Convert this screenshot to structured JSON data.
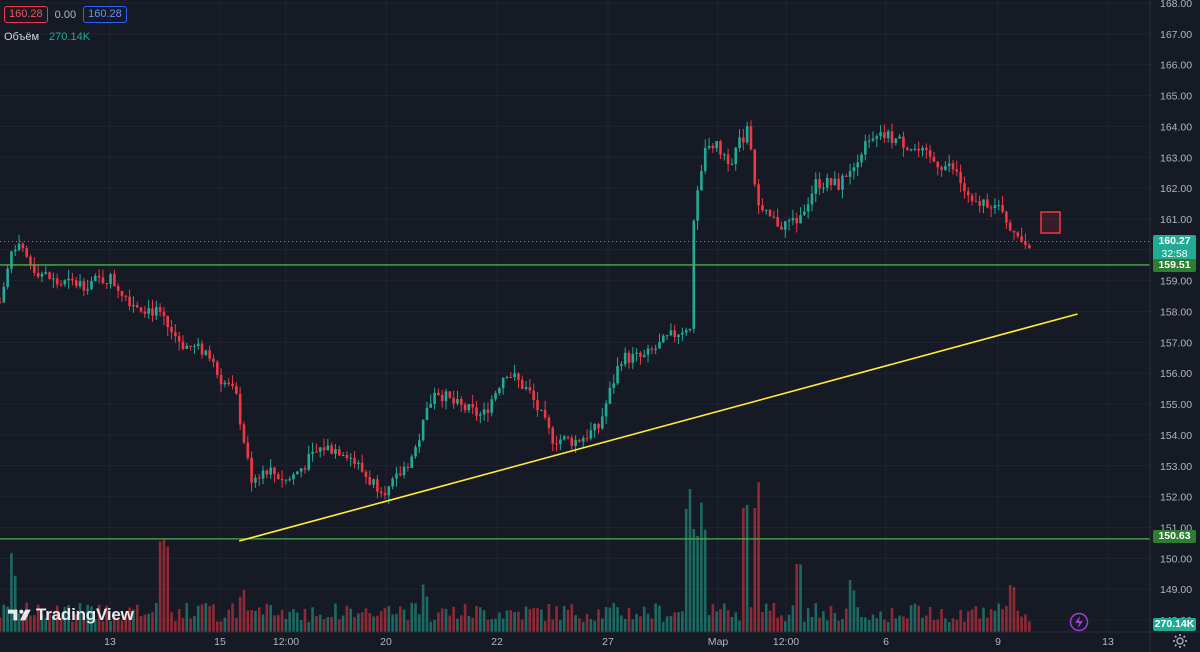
{
  "legend": {
    "open": "160.28",
    "change": "0.00",
    "close": "160.28",
    "volume_label": "Объём",
    "volume_value": "270.14K"
  },
  "branding": {
    "logo_text": "TradingView"
  },
  "colors": {
    "background": "#161a25",
    "up": "#22ab94",
    "down": "#f23645",
    "grid": "#1f2431",
    "horizontal_line": "#4caf50",
    "trendline": "#ffeb3b",
    "volume_up": "#22ab94",
    "volume_down": "#f23645",
    "last_price": "#22ab94"
  },
  "price_tags": {
    "last_price": "160.27",
    "countdown": "32:58",
    "level_upper": "159.51",
    "level_lower": "150.63",
    "volume": "270.14K"
  },
  "icons": {
    "settings": "gear-icon",
    "replay": "lightning-icon"
  },
  "chart_data": {
    "type": "candlestick",
    "price_axis": {
      "min": 148.0,
      "max": 168.0,
      "ticks": [
        "168.00",
        "167.00",
        "166.00",
        "165.00",
        "164.00",
        "163.00",
        "162.00",
        "161.00",
        "160.00",
        "159.00",
        "158.00",
        "157.00",
        "156.00",
        "155.00",
        "154.00",
        "153.00",
        "152.00",
        "151.00",
        "150.00",
        "149.00",
        "148.00"
      ]
    },
    "time_axis": {
      "labels": [
        "13",
        "15",
        "12:00",
        "20",
        "22",
        "27",
        "Мар",
        "12:00",
        "6",
        "9",
        "13"
      ]
    },
    "horizontal_lines": [
      159.51,
      150.63
    ],
    "trendline": {
      "from": [
        0.208,
        150.56
      ],
      "to": [
        0.937,
        157.92
      ]
    },
    "last_price": 160.27,
    "keypoints": [
      [
        0,
        158.3
      ],
      [
        0.012,
        160.2
      ],
      [
        0.03,
        159.4
      ],
      [
        0.05,
        158.9
      ],
      [
        0.075,
        158.9
      ],
      [
        0.095,
        159.1
      ],
      [
        0.115,
        158.3
      ],
      [
        0.135,
        158.0
      ],
      [
        0.16,
        156.9
      ],
      [
        0.18,
        156.7
      ],
      [
        0.19,
        155.9
      ],
      [
        0.205,
        155.3
      ],
      [
        0.218,
        152.6
      ],
      [
        0.232,
        152.9
      ],
      [
        0.25,
        152.5
      ],
      [
        0.28,
        153.6
      ],
      [
        0.3,
        153.5
      ],
      [
        0.322,
        152.5
      ],
      [
        0.338,
        152.2
      ],
      [
        0.36,
        153.4
      ],
      [
        0.378,
        155.5
      ],
      [
        0.395,
        155.0
      ],
      [
        0.42,
        154.6
      ],
      [
        0.44,
        156.1
      ],
      [
        0.46,
        155.4
      ],
      [
        0.48,
        153.9
      ],
      [
        0.5,
        153.8
      ],
      [
        0.52,
        154.2
      ],
      [
        0.54,
        156.5
      ],
      [
        0.56,
        156.5
      ],
      [
        0.58,
        157.1
      ],
      [
        0.6,
        157.6
      ],
      [
        0.603,
        160.9
      ],
      [
        0.615,
        163.6
      ],
      [
        0.635,
        162.9
      ],
      [
        0.65,
        163.9
      ],
      [
        0.66,
        161.2
      ],
      [
        0.68,
        160.8
      ],
      [
        0.695,
        161.0
      ],
      [
        0.71,
        162.2
      ],
      [
        0.73,
        162.1
      ],
      [
        0.75,
        163.3
      ],
      [
        0.77,
        163.7
      ],
      [
        0.79,
        163.4
      ],
      [
        0.81,
        162.9
      ],
      [
        0.83,
        162.6
      ],
      [
        0.845,
        161.4
      ],
      [
        0.86,
        161.6
      ],
      [
        0.875,
        161.0
      ],
      [
        0.885,
        160.4
      ],
      [
        0.895,
        160.27
      ]
    ],
    "volume_keypoints": [
      [
        0.012,
        0.55
      ],
      [
        0.143,
        0.6
      ],
      [
        0.182,
        0.25
      ],
      [
        0.21,
        0.3
      ],
      [
        0.37,
        0.32
      ],
      [
        0.6,
        0.88
      ],
      [
        0.61,
        0.9
      ],
      [
        0.648,
        1.0
      ],
      [
        0.658,
        0.95
      ],
      [
        0.695,
        0.42
      ],
      [
        0.74,
        0.32
      ],
      [
        0.88,
        0.3
      ]
    ]
  }
}
